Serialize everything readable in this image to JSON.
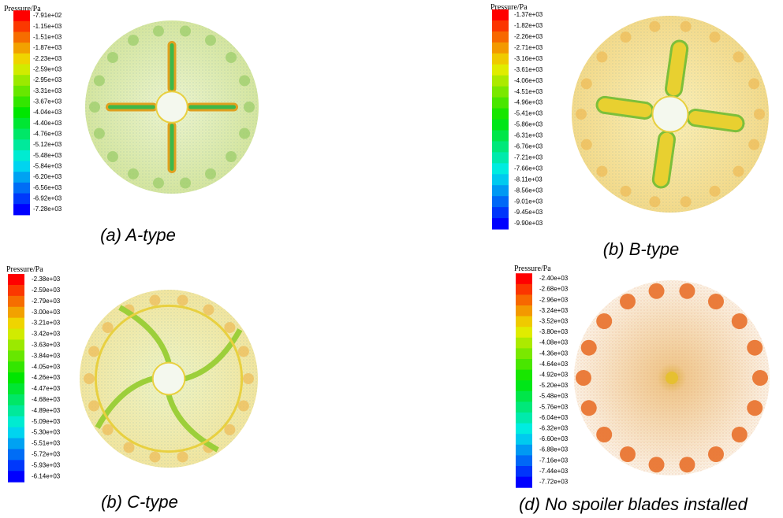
{
  "panels": [
    {
      "legend_title": "Pressure/Pa",
      "caption": "(a) A-type",
      "legend_labels": [
        "-7.91e+02",
        "-1.15e+03",
        "-1.51e+03",
        "-1.87e+03",
        "-2.23e+03",
        "-2.59e+03",
        "-2.95e+03",
        "-3.31e+03",
        "-3.67e+03",
        "-4.04e+03",
        "-4.40e+03",
        "-4.76e+03",
        "-5.12e+03",
        "-5.48e+03",
        "-5.84e+03",
        "-6.20e+03",
        "-6.56e+03",
        "-6.92e+03",
        "-7.28e+03"
      ]
    },
    {
      "legend_title": "Pressure/Pa",
      "caption": "(b) B-type",
      "legend_labels": [
        "-1.37e+03",
        "-1.82e+03",
        "-2.26e+03",
        "-2.71e+03",
        "-3.16e+03",
        "-3.61e+03",
        "-4.06e+03",
        "-4.51e+03",
        "-4.96e+03",
        "-5.41e+03",
        "-5.86e+03",
        "-6.31e+03",
        "-6.76e+03",
        "-7.21e+03",
        "-7.66e+03",
        "-8.11e+03",
        "-8.56e+03",
        "-9.01e+03",
        "-9.45e+03",
        "-9.90e+03"
      ]
    },
    {
      "legend_title": "Pressure/Pa",
      "caption": "(b) C-type",
      "legend_labels": [
        "-2.38e+03",
        "-2.59e+03",
        "-2.79e+03",
        "-3.00e+03",
        "-3.21e+03",
        "-3.42e+03",
        "-3.63e+03",
        "-3.84e+03",
        "-4.05e+03",
        "-4.26e+03",
        "-4.47e+03",
        "-4.68e+03",
        "-4.89e+03",
        "-5.09e+03",
        "-5.30e+03",
        "-5.51e+03",
        "-5.72e+03",
        "-5.93e+03",
        "-6.14e+03"
      ]
    },
    {
      "legend_title": "Pressure/Pa",
      "caption": "(d) No spoiler blades installed",
      "legend_labels": [
        "-2.40e+03",
        "-2.68e+03",
        "-2.96e+03",
        "-3.24e+03",
        "-3.52e+03",
        "-3.80e+03",
        "-4.08e+03",
        "-4.36e+03",
        "-4.64e+03",
        "-4.92e+03",
        "-5.20e+03",
        "-5.48e+03",
        "-5.76e+03",
        "-6.04e+03",
        "-6.32e+03",
        "-6.60e+03",
        "-6.88e+03",
        "-7.16e+03",
        "-7.44e+03",
        "-7.72e+03"
      ]
    }
  ]
}
